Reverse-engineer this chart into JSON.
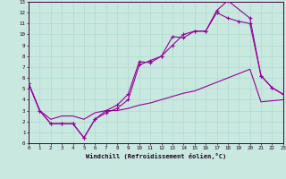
{
  "xlabel": "Windchill (Refroidissement éolien,°C)",
  "bg_color": "#c8e8e0",
  "line_color": "#990099",
  "xlim": [
    0,
    23
  ],
  "ylim": [
    0,
    13
  ],
  "xticks": [
    0,
    1,
    2,
    3,
    4,
    5,
    6,
    7,
    8,
    9,
    10,
    11,
    12,
    13,
    14,
    15,
    16,
    17,
    18,
    19,
    20,
    21,
    22,
    23
  ],
  "yticks": [
    0,
    1,
    2,
    3,
    4,
    5,
    6,
    7,
    8,
    9,
    10,
    11,
    12,
    13
  ],
  "line1_x": [
    0,
    1,
    2,
    3,
    4,
    5,
    6,
    7,
    8,
    9,
    10,
    11,
    12,
    13,
    14,
    15,
    16,
    17,
    18,
    20,
    21,
    22,
    23
  ],
  "line1_y": [
    5.5,
    3.0,
    1.8,
    1.8,
    1.8,
    0.5,
    2.2,
    3.0,
    3.5,
    4.5,
    7.5,
    7.4,
    8.0,
    9.8,
    9.7,
    10.3,
    10.3,
    12.2,
    13.1,
    11.5,
    6.2,
    5.1,
    4.5
  ],
  "line2_x": [
    0,
    1,
    2,
    3,
    4,
    5,
    6,
    7,
    8,
    9,
    10,
    11,
    12,
    13,
    14,
    15,
    16,
    17,
    18,
    19,
    20,
    21,
    22,
    23
  ],
  "line2_y": [
    5.5,
    3.0,
    1.8,
    1.8,
    1.8,
    0.5,
    2.2,
    2.8,
    3.2,
    4.0,
    7.2,
    7.6,
    8.0,
    9.0,
    10.0,
    10.3,
    10.3,
    12.0,
    11.5,
    11.2,
    11.0,
    6.2,
    5.1,
    4.5
  ],
  "line3_x": [
    0,
    1,
    2,
    3,
    4,
    5,
    6,
    7,
    8,
    9,
    10,
    11,
    12,
    13,
    14,
    15,
    16,
    17,
    18,
    19,
    20,
    21,
    22,
    23
  ],
  "line3_y": [
    5.5,
    3.0,
    2.2,
    2.5,
    2.5,
    2.2,
    2.8,
    3.0,
    3.0,
    3.2,
    3.5,
    3.7,
    4.0,
    4.3,
    4.6,
    4.8,
    5.2,
    5.6,
    6.0,
    6.4,
    6.8,
    3.8,
    3.9,
    4.0
  ]
}
